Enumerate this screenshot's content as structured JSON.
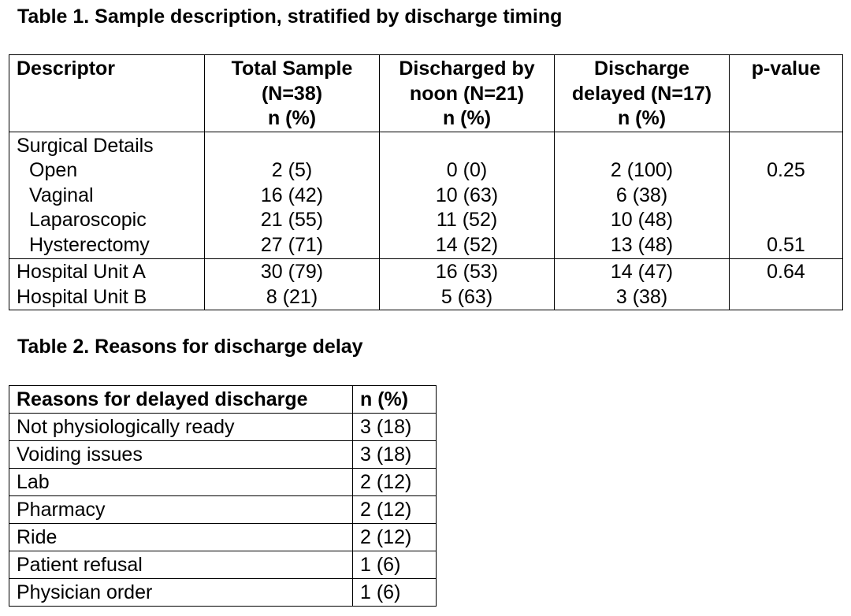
{
  "table1": {
    "title": "Table 1. Sample description, stratified by discharge timing",
    "headers": [
      [
        "Descriptor"
      ],
      [
        "Total Sample",
        "(N=38)",
        "n (%)"
      ],
      [
        "Discharged by",
        "noon (N=21)",
        "n (%)"
      ],
      [
        "Discharge",
        "delayed (N=17)",
        "n (%)"
      ],
      [
        "p-value"
      ]
    ],
    "surgical": {
      "group_label": "Surgical Details",
      "rows": [
        {
          "label": "Open",
          "total": "2 (5)",
          "noon": "0 (0)",
          "delayed": "2 (100)",
          "p": "0.25"
        },
        {
          "label": "Vaginal",
          "total": "16 (42)",
          "noon": "10 (63)",
          "delayed": "6 (38)",
          "p": ""
        },
        {
          "label": "Laparoscopic",
          "total": "21 (55)",
          "noon": "11 (52)",
          "delayed": "10 (48)",
          "p": ""
        },
        {
          "label": "Hysterectomy",
          "total": "27 (71)",
          "noon": "14 (52)",
          "delayed": "13 (48)",
          "p": "0.51"
        }
      ]
    },
    "units": {
      "rows": [
        {
          "label": "Hospital Unit A",
          "total": "30 (79)",
          "noon": "16 (53)",
          "delayed": "14 (47)",
          "p": "0.64"
        },
        {
          "label": "Hospital Unit B",
          "total": "8 (21)",
          "noon": "5 (63)",
          "delayed": "3 (38)",
          "p": ""
        }
      ]
    }
  },
  "table2": {
    "title": "Table 2. Reasons for discharge delay",
    "headers": [
      "Reasons for delayed discharge",
      "n (%)"
    ],
    "rows": [
      {
        "reason": "Not physiologically ready",
        "n": "3 (18)"
      },
      {
        "reason": "Voiding issues",
        "n": "3 (18)"
      },
      {
        "reason": "Lab",
        "n": "2 (12)"
      },
      {
        "reason": "Pharmacy",
        "n": "2 (12)"
      },
      {
        "reason": "Ride",
        "n": "2 (12)"
      },
      {
        "reason": "Patient refusal",
        "n": "1 (6)"
      },
      {
        "reason": "Physician order",
        "n": "1 (6)"
      }
    ]
  }
}
